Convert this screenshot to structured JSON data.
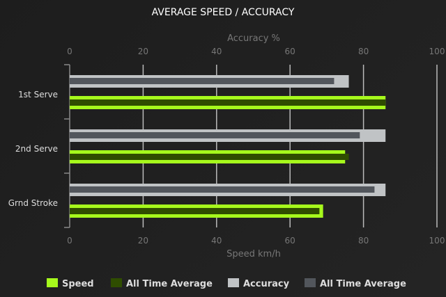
{
  "chart_data": {
    "type": "bar",
    "orientation": "horizontal",
    "title": "AVERAGE SPEED / ACCURACY",
    "top_axis_label": "Accuracy %",
    "bottom_axis_label": "Speed km/h",
    "xlim": [
      0,
      100
    ],
    "ticks": [
      "0",
      "20",
      "40",
      "60",
      "80",
      "100"
    ],
    "grid": true,
    "legend_position": "bottom",
    "categories": [
      "1st Serve",
      "2nd Serve",
      "Grnd Stroke"
    ],
    "series": [
      {
        "name": "Speed",
        "color": "#a6f91c",
        "values": [
          86,
          75,
          69
        ]
      },
      {
        "name": "All Time Average",
        "color": "#2f4d00",
        "values": [
          86,
          76,
          68
        ]
      },
      {
        "name": "Accuracy",
        "color": "#c0c3c5",
        "values": [
          76,
          86,
          86
        ]
      },
      {
        "name": "All Time Average",
        "color": "#52565c",
        "values": [
          72,
          79,
          83
        ]
      }
    ]
  }
}
